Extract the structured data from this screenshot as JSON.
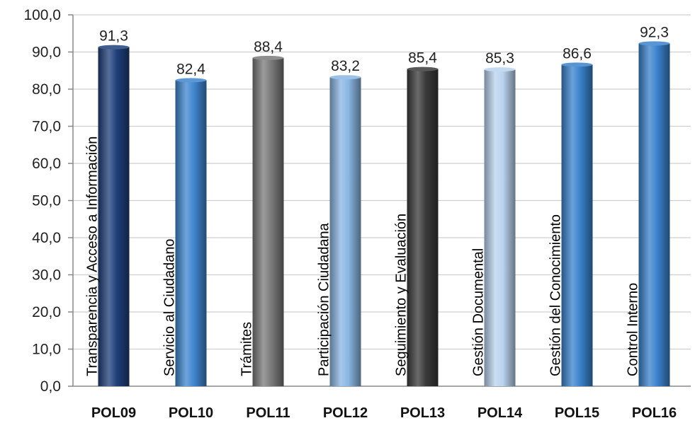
{
  "chart_data": {
    "type": "bar",
    "title": "",
    "xlabel": "",
    "ylabel": "",
    "ylim": [
      0,
      100
    ],
    "yticks": [
      "0,0",
      "10,0",
      "20,0",
      "30,0",
      "40,0",
      "50,0",
      "60,0",
      "70,0",
      "80,0",
      "90,0",
      "100,0"
    ],
    "grid": true,
    "categories": [
      "POL09",
      "POL10",
      "POL11",
      "POL12",
      "POL13",
      "POL14",
      "POL15",
      "POL16"
    ],
    "bar_names": [
      "Transparencia y Acceso a Información",
      "Servicio al Ciudadano",
      "Trámites",
      "Participación Ciudadana",
      "Seguimiento y Evaluación",
      "Gestión Documental",
      "Gestión del Conocimiento",
      "Control Interno"
    ],
    "values": [
      91.3,
      82.4,
      88.4,
      83.2,
      85.4,
      85.3,
      86.6,
      92.3
    ],
    "value_labels": [
      "91,3",
      "82,4",
      "88,4",
      "83,2",
      "85,4",
      "85,3",
      "86,6",
      "92,3"
    ],
    "colors": [
      "#1f3f7a",
      "#3f86cf",
      "#7a7a7a",
      "#8ab6e2",
      "#3a3a3a",
      "#b9d3ee",
      "#3a82cc",
      "#3a82cc"
    ]
  }
}
